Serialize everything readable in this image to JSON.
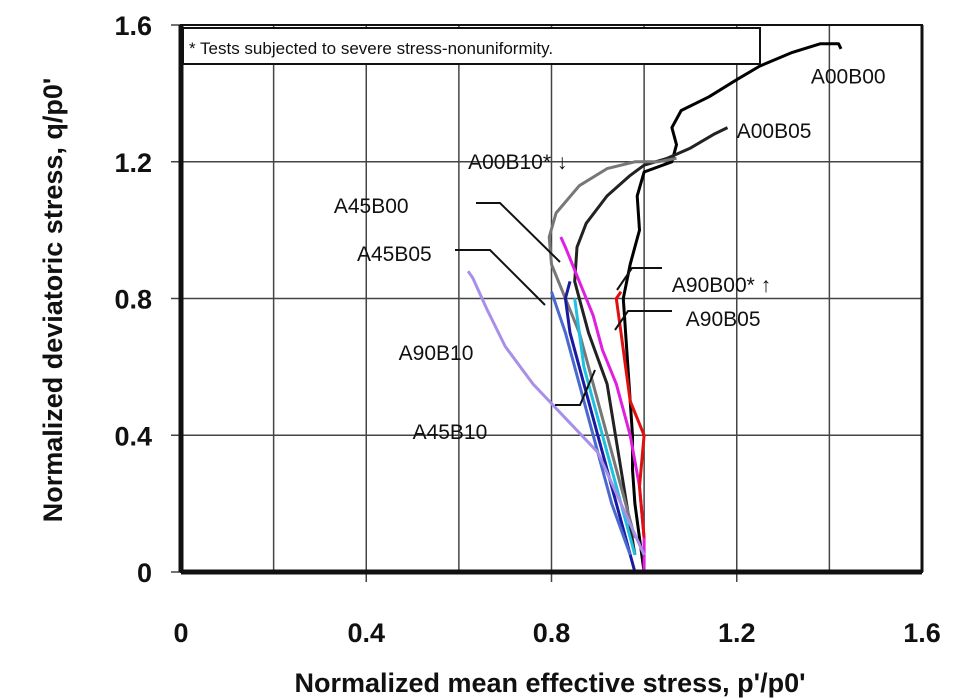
{
  "chart_data": {
    "type": "line",
    "title": "",
    "xlabel": "Normalized mean effective stress, p'/p0'",
    "ylabel": "Normalized deviatoric stress, q/p0'",
    "xlim": [
      0,
      1.6
    ],
    "ylim": [
      0,
      1.6
    ],
    "xticks": [
      "0",
      "0.4",
      "0.8",
      "1.2",
      "1.6"
    ],
    "yticks": [
      "0",
      "0.4",
      "0.8",
      "1.2",
      "1.6"
    ],
    "grid": true,
    "note": "* Tests subjected to severe stress-nonuniformity.",
    "series": [
      {
        "name": "A00B00",
        "color": "#000000",
        "width": 3,
        "points": [
          [
            1.0,
            0.0
          ],
          [
            0.99,
            0.1
          ],
          [
            0.98,
            0.2
          ],
          [
            0.975,
            0.3
          ],
          [
            0.975,
            0.4
          ],
          [
            0.97,
            0.5
          ],
          [
            0.965,
            0.6
          ],
          [
            0.96,
            0.7
          ],
          [
            0.955,
            0.8
          ],
          [
            0.97,
            0.9
          ],
          [
            0.99,
            1.0
          ],
          [
            0.985,
            1.1
          ],
          [
            1.0,
            1.17
          ],
          [
            1.06,
            1.2
          ],
          [
            1.07,
            1.25
          ],
          [
            1.06,
            1.3
          ],
          [
            1.08,
            1.35
          ],
          [
            1.14,
            1.39
          ],
          [
            1.2,
            1.44
          ],
          [
            1.25,
            1.48
          ],
          [
            1.32,
            1.52
          ],
          [
            1.38,
            1.545
          ],
          [
            1.42,
            1.545
          ],
          [
            1.425,
            1.53
          ]
        ]
      },
      {
        "name": "A00B05",
        "color": "#222222",
        "width": 3,
        "points": [
          [
            0.98,
            0.05
          ],
          [
            0.95,
            0.3
          ],
          [
            0.92,
            0.55
          ],
          [
            0.88,
            0.7
          ],
          [
            0.85,
            0.85
          ],
          [
            0.855,
            0.95
          ],
          [
            0.875,
            1.02
          ],
          [
            0.92,
            1.1
          ],
          [
            0.97,
            1.16
          ],
          [
            1.0,
            1.19
          ],
          [
            1.05,
            1.21
          ],
          [
            1.1,
            1.24
          ],
          [
            1.15,
            1.28
          ],
          [
            1.18,
            1.3
          ]
        ]
      },
      {
        "name": "A00B10*",
        "color": "#777777",
        "width": 3,
        "points": [
          [
            0.98,
            0.1
          ],
          [
            0.92,
            0.4
          ],
          [
            0.86,
            0.7
          ],
          [
            0.8,
            0.9
          ],
          [
            0.795,
            0.98
          ],
          [
            0.81,
            1.05
          ],
          [
            0.86,
            1.13
          ],
          [
            0.92,
            1.18
          ],
          [
            0.98,
            1.2
          ],
          [
            1.03,
            1.2
          ],
          [
            1.07,
            1.21
          ]
        ]
      },
      {
        "name": "A45B00",
        "color": "#1a1aa0",
        "width": 3,
        "points": [
          [
            0.98,
            0.0
          ],
          [
            0.95,
            0.15
          ],
          [
            0.91,
            0.35
          ],
          [
            0.87,
            0.55
          ],
          [
            0.84,
            0.7
          ],
          [
            0.83,
            0.8
          ],
          [
            0.84,
            0.85
          ]
        ]
      },
      {
        "name": "A45B05",
        "color": "#4a6ad0",
        "width": 3,
        "points": [
          [
            0.97,
            0.05
          ],
          [
            0.93,
            0.2
          ],
          [
            0.89,
            0.4
          ],
          [
            0.86,
            0.55
          ],
          [
            0.83,
            0.7
          ],
          [
            0.81,
            0.78
          ],
          [
            0.8,
            0.82
          ]
        ]
      },
      {
        "name": "A45B10",
        "color": "#20c0e0",
        "width": 3,
        "points": [
          [
            0.98,
            0.05
          ],
          [
            0.95,
            0.2
          ],
          [
            0.92,
            0.35
          ],
          [
            0.89,
            0.5
          ],
          [
            0.87,
            0.6
          ],
          [
            0.86,
            0.7
          ],
          [
            0.85,
            0.8
          ]
        ]
      },
      {
        "name": "A90B00*",
        "color": "#e020e0",
        "width": 3,
        "points": [
          [
            1.0,
            0.0
          ],
          [
            1.0,
            0.1
          ],
          [
            0.99,
            0.25
          ],
          [
            0.97,
            0.4
          ],
          [
            0.94,
            0.55
          ],
          [
            0.91,
            0.65
          ],
          [
            0.89,
            0.75
          ],
          [
            0.86,
            0.85
          ],
          [
            0.83,
            0.95
          ],
          [
            0.82,
            0.98
          ]
        ]
      },
      {
        "name": "A90B05",
        "color": "#e01010",
        "width": 3,
        "points": [
          [
            1.0,
            0.1
          ],
          [
            0.99,
            0.25
          ],
          [
            1.0,
            0.4
          ],
          [
            0.97,
            0.5
          ],
          [
            0.96,
            0.6
          ],
          [
            0.95,
            0.7
          ],
          [
            0.94,
            0.8
          ],
          [
            0.95,
            0.82
          ]
        ]
      },
      {
        "name": "A90B10",
        "color": "#a890e8",
        "width": 3,
        "points": [
          [
            1.0,
            0.05
          ],
          [
            0.95,
            0.2
          ],
          [
            0.9,
            0.35
          ],
          [
            0.83,
            0.45
          ],
          [
            0.76,
            0.55
          ],
          [
            0.7,
            0.66
          ],
          [
            0.66,
            0.77
          ],
          [
            0.63,
            0.86
          ],
          [
            0.62,
            0.88
          ]
        ]
      }
    ],
    "annotations": [
      {
        "text": "A00B00",
        "x": 1.36,
        "y": 1.45
      },
      {
        "text": "A00B05",
        "x": 1.2,
        "y": 1.29
      },
      {
        "text": "A00B10* ↓",
        "x": 0.62,
        "y": 1.2
      },
      {
        "text": "A45B00",
        "x": 0.33,
        "y": 1.07
      },
      {
        "text": "A45B05",
        "x": 0.38,
        "y": 0.93
      },
      {
        "text": "A90B00* ↑",
        "x": 1.06,
        "y": 0.84
      },
      {
        "text": "A90B05",
        "x": 1.09,
        "y": 0.74
      },
      {
        "text": "A90B10",
        "x": 0.47,
        "y": 0.64
      },
      {
        "text": "A45B10",
        "x": 0.5,
        "y": 0.41
      }
    ]
  }
}
